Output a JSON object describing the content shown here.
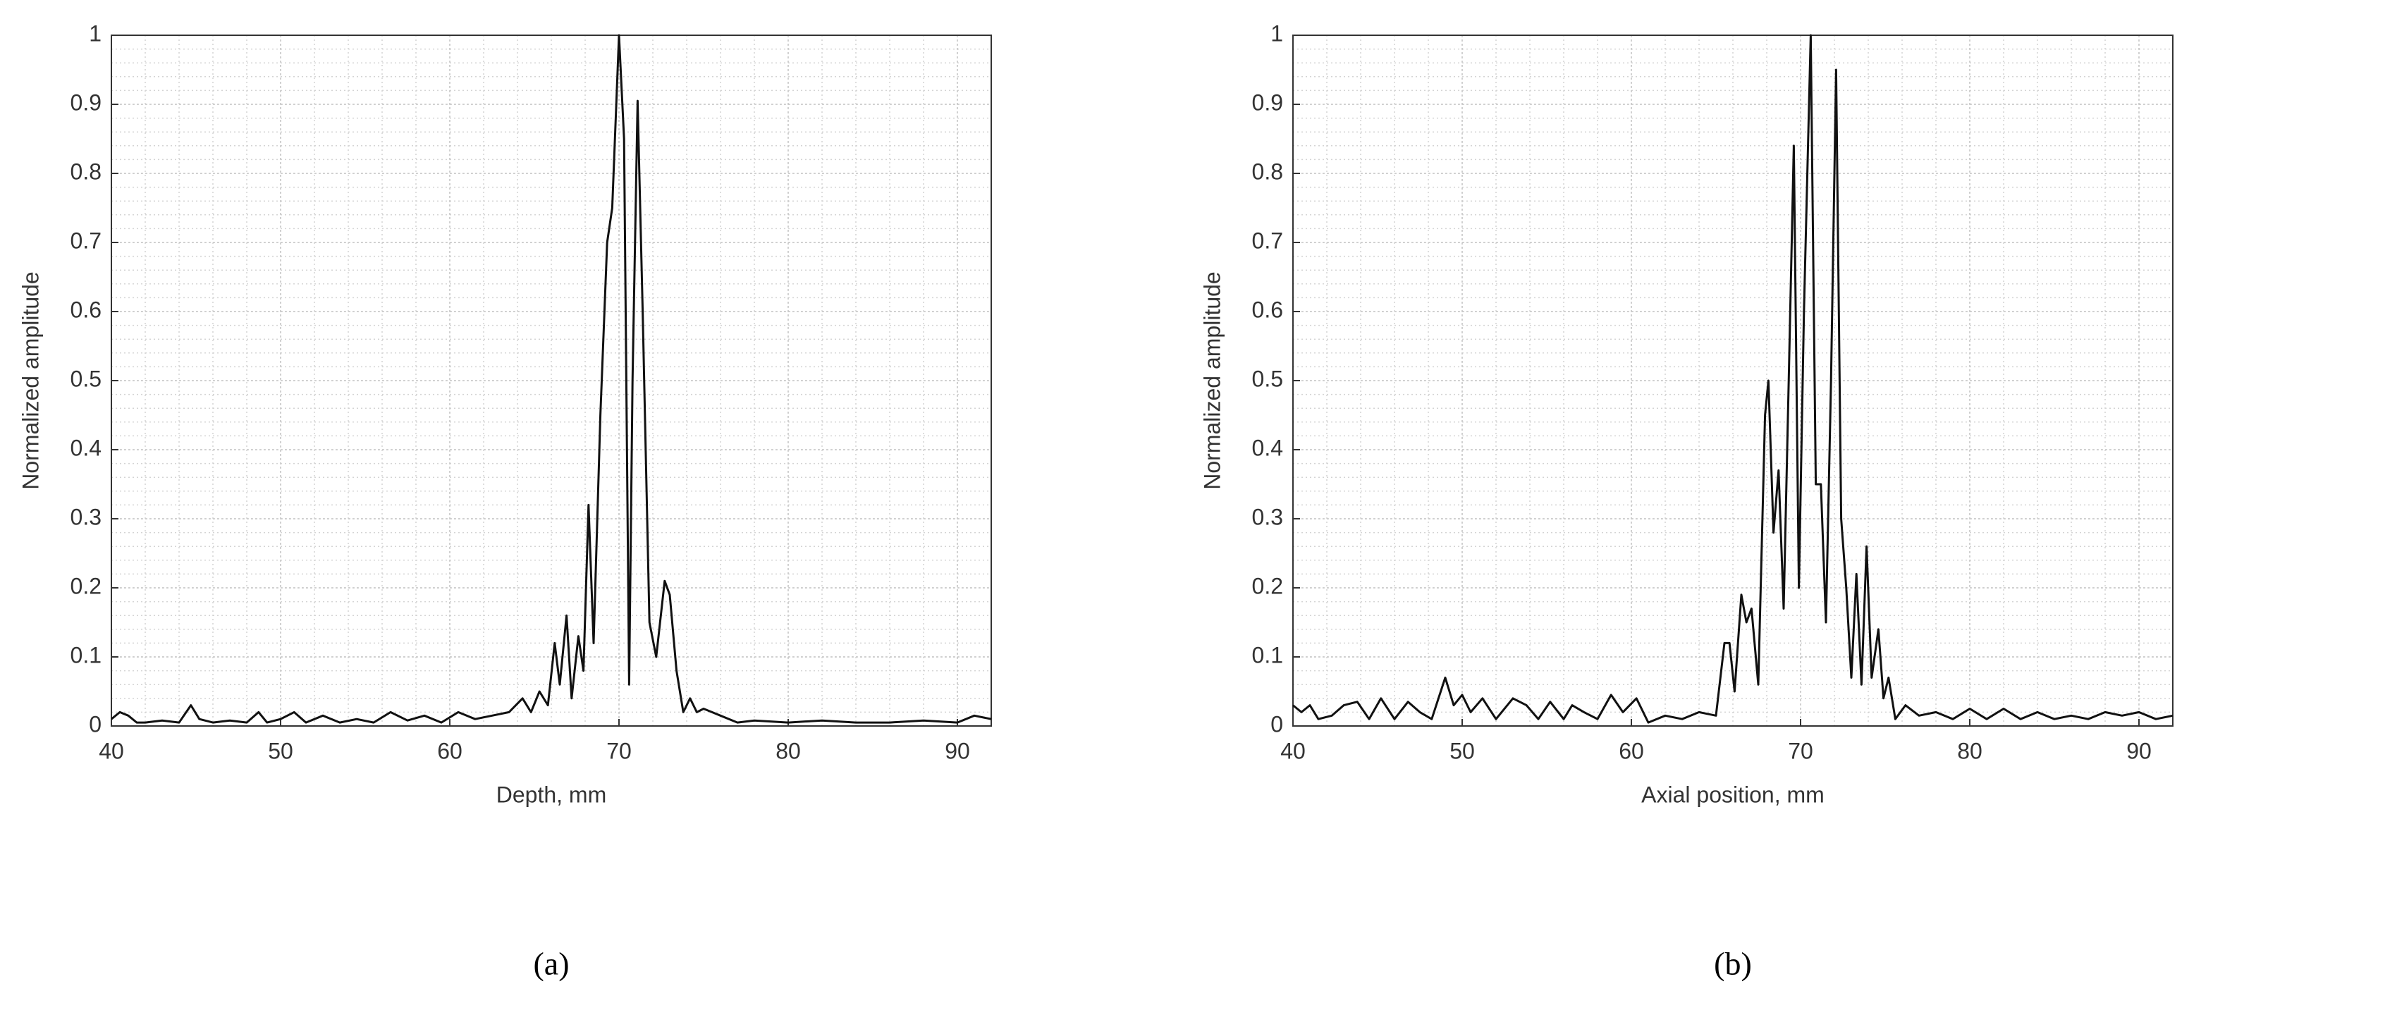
{
  "chart_data": [
    {
      "type": "line",
      "label": "(a)",
      "xlabel": "Depth, mm",
      "ylabel": "Normalized amplitude",
      "color": "#111111",
      "grid": true,
      "minor_grid": true,
      "xlim": [
        40,
        92
      ],
      "xticks": [
        40,
        50,
        60,
        70,
        80,
        90
      ],
      "ylim": [
        0,
        1
      ],
      "yticks": [
        0,
        0.1,
        0.2,
        0.3,
        0.4,
        0.5,
        0.6,
        0.7,
        0.8,
        0.9,
        1
      ],
      "x": [
        40,
        40.5,
        41,
        41.5,
        42,
        43,
        44,
        44.7,
        45.2,
        46,
        47,
        48,
        48.7,
        49.2,
        50,
        50.8,
        51.5,
        52.5,
        53.5,
        54.5,
        55.5,
        56.5,
        57.5,
        58.5,
        59.5,
        60.5,
        61.5,
        62.5,
        63.5,
        64.3,
        64.8,
        65.3,
        65.8,
        66.2,
        66.5,
        66.9,
        67.2,
        67.6,
        67.9,
        68.2,
        68.5,
        68.9,
        69.3,
        69.6,
        70.0,
        70.3,
        70.6,
        70.8,
        71.1,
        71.4,
        71.8,
        72.2,
        72.7,
        73.0,
        73.4,
        73.8,
        74.2,
        74.6,
        75,
        76,
        77,
        78,
        80,
        82,
        84,
        86,
        88,
        90,
        91,
        92
      ],
      "values": [
        0.01,
        0.02,
        0.015,
        0.005,
        0.005,
        0.008,
        0.005,
        0.03,
        0.01,
        0.005,
        0.008,
        0.005,
        0.02,
        0.005,
        0.01,
        0.02,
        0.005,
        0.015,
        0.005,
        0.01,
        0.005,
        0.02,
        0.008,
        0.015,
        0.005,
        0.02,
        0.01,
        0.015,
        0.02,
        0.04,
        0.02,
        0.05,
        0.03,
        0.12,
        0.06,
        0.16,
        0.04,
        0.13,
        0.08,
        0.32,
        0.12,
        0.45,
        0.7,
        0.75,
        1.0,
        0.85,
        0.06,
        0.5,
        0.905,
        0.6,
        0.15,
        0.1,
        0.21,
        0.19,
        0.08,
        0.02,
        0.04,
        0.02,
        0.025,
        0.015,
        0.005,
        0.008,
        0.005,
        0.008,
        0.005,
        0.005,
        0.008,
        0.005,
        0.015,
        0.01
      ]
    },
    {
      "type": "line",
      "label": "(b)",
      "xlabel": "Axial position, mm",
      "ylabel": "Normalized amplitude",
      "color": "#111111",
      "grid": true,
      "minor_grid": true,
      "xlim": [
        40,
        92
      ],
      "xticks": [
        40,
        50,
        60,
        70,
        80,
        90
      ],
      "ylim": [
        0,
        1
      ],
      "yticks": [
        0,
        0.1,
        0.2,
        0.3,
        0.4,
        0.5,
        0.6,
        0.7,
        0.8,
        0.9,
        1
      ],
      "x": [
        40,
        40.5,
        41,
        41.5,
        42.3,
        43,
        43.8,
        44.5,
        45.2,
        46,
        46.8,
        47.5,
        48.2,
        49,
        49.5,
        50,
        50.5,
        51.2,
        52,
        53,
        53.8,
        54.5,
        55.2,
        56,
        56.5,
        57.2,
        58,
        58.8,
        59.5,
        60.3,
        61,
        62,
        63,
        64,
        65,
        65.5,
        65.8,
        66.1,
        66.5,
        66.8,
        67.1,
        67.5,
        67.9,
        68.1,
        68.4,
        68.7,
        69.0,
        69.3,
        69.6,
        69.9,
        70.2,
        70.6,
        70.9,
        71.2,
        71.5,
        71.8,
        72.1,
        72.4,
        72.7,
        73.0,
        73.3,
        73.6,
        73.9,
        74.2,
        74.6,
        74.9,
        75.2,
        75.6,
        76.2,
        77,
        78,
        79,
        80,
        81,
        82,
        83,
        84,
        85,
        86,
        87,
        88,
        89,
        90,
        91,
        92
      ],
      "values": [
        0.03,
        0.02,
        0.03,
        0.01,
        0.015,
        0.03,
        0.035,
        0.01,
        0.04,
        0.01,
        0.035,
        0.02,
        0.01,
        0.07,
        0.03,
        0.045,
        0.02,
        0.04,
        0.01,
        0.04,
        0.03,
        0.01,
        0.035,
        0.01,
        0.03,
        0.02,
        0.01,
        0.045,
        0.02,
        0.04,
        0.005,
        0.015,
        0.01,
        0.02,
        0.015,
        0.12,
        0.12,
        0.05,
        0.19,
        0.15,
        0.17,
        0.06,
        0.45,
        0.5,
        0.28,
        0.37,
        0.17,
        0.5,
        0.84,
        0.2,
        0.6,
        1.0,
        0.35,
        0.35,
        0.15,
        0.5,
        0.95,
        0.3,
        0.2,
        0.07,
        0.22,
        0.06,
        0.26,
        0.07,
        0.14,
        0.04,
        0.07,
        0.01,
        0.03,
        0.015,
        0.02,
        0.01,
        0.025,
        0.01,
        0.025,
        0.01,
        0.02,
        0.01,
        0.015,
        0.01,
        0.02,
        0.015,
        0.02,
        0.01,
        0.015
      ]
    }
  ]
}
